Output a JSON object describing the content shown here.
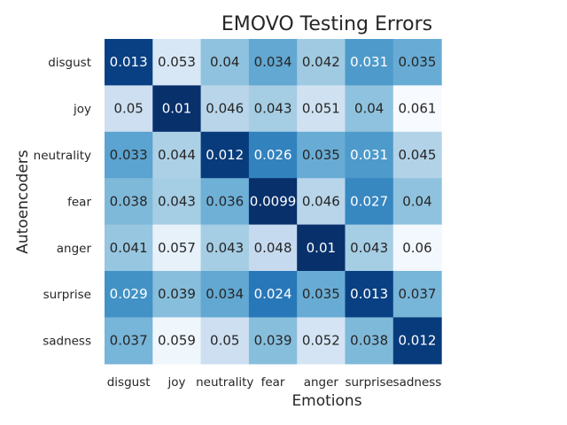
{
  "chart_data": {
    "type": "heatmap",
    "title": "EMOVO Testing Errors",
    "xlabel": "Emotions",
    "ylabel": "Autoencoders",
    "x_categories": [
      "disgust",
      "joy",
      "neutrality",
      "fear",
      "anger",
      "surprise",
      "sadness"
    ],
    "y_categories": [
      "disgust",
      "joy",
      "neutrality",
      "fear",
      "anger",
      "surprise",
      "sadness"
    ],
    "values": [
      [
        0.013,
        0.053,
        0.04,
        0.034,
        0.042,
        0.031,
        0.035
      ],
      [
        0.05,
        0.01,
        0.046,
        0.043,
        0.051,
        0.04,
        0.061
      ],
      [
        0.033,
        0.044,
        0.012,
        0.026,
        0.035,
        0.031,
        0.045
      ],
      [
        0.038,
        0.043,
        0.036,
        0.0099,
        0.046,
        0.027,
        0.04
      ],
      [
        0.041,
        0.057,
        0.043,
        0.048,
        0.01,
        0.043,
        0.06
      ],
      [
        0.029,
        0.039,
        0.034,
        0.024,
        0.035,
        0.013,
        0.037
      ],
      [
        0.037,
        0.059,
        0.05,
        0.039,
        0.052,
        0.038,
        0.012
      ]
    ],
    "colormap": "Blues_r",
    "annotations": true,
    "colorbar": false,
    "grid": false
  }
}
